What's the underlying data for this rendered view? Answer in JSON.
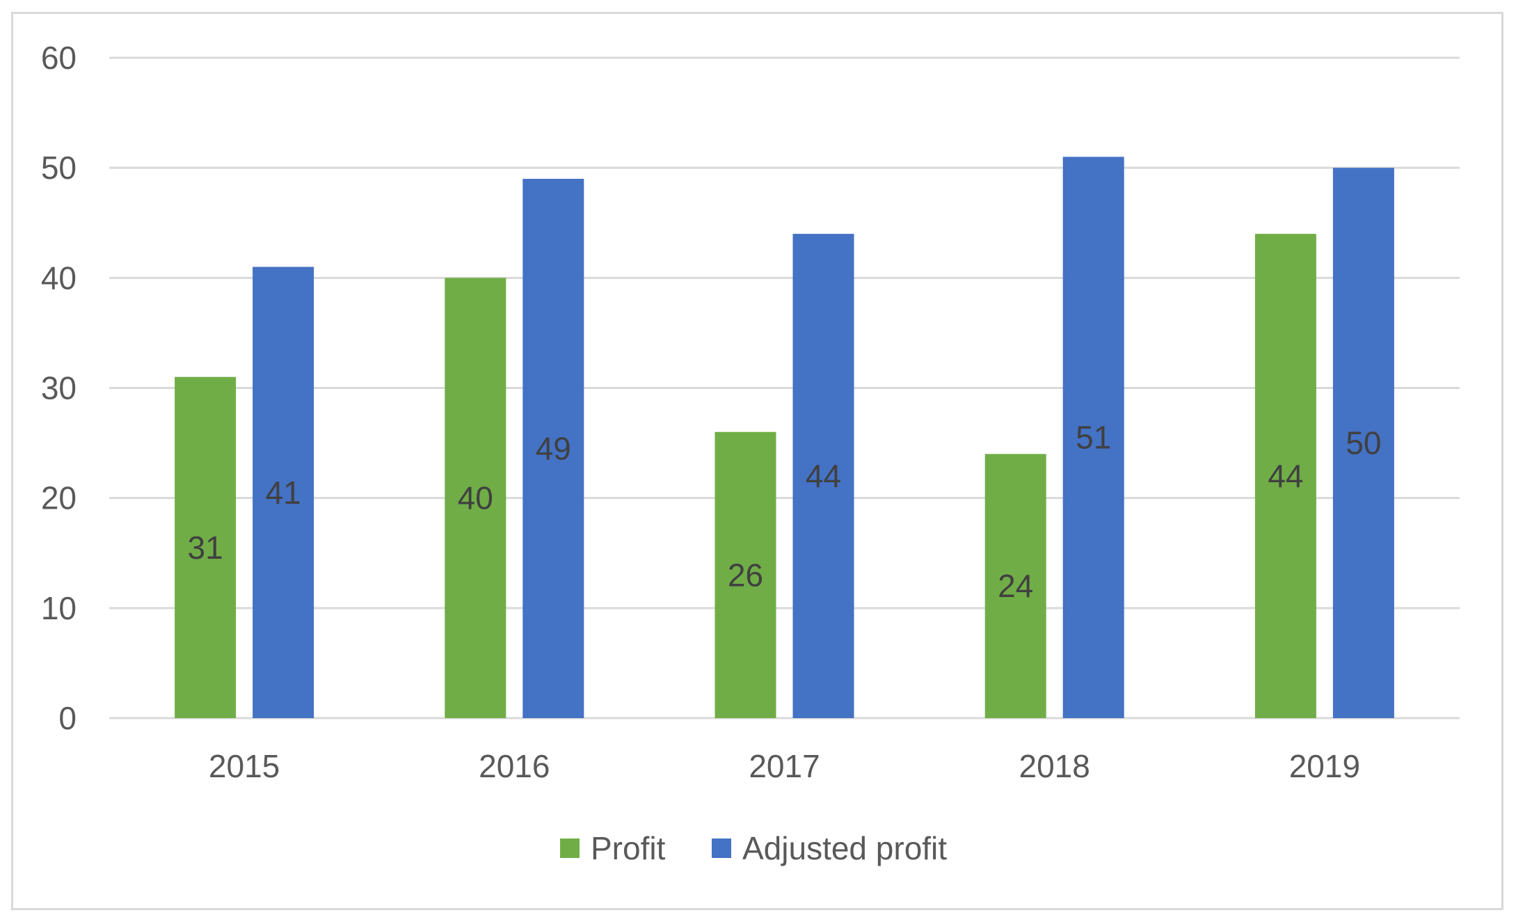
{
  "chart_data": {
    "type": "bar",
    "title": "",
    "xlabel": "",
    "ylabel": "",
    "categories": [
      "2015",
      "2016",
      "2017",
      "2018",
      "2019"
    ],
    "series": [
      {
        "name": "Profit",
        "color": "#70AD47",
        "values": [
          31,
          40,
          26,
          24,
          44
        ]
      },
      {
        "name": "Adjusted profit",
        "color": "#4472C4",
        "values": [
          41,
          49,
          44,
          51,
          50
        ]
      }
    ],
    "ylim": [
      0,
      60
    ],
    "yticks": [
      0,
      10,
      20,
      30,
      40,
      50,
      60
    ],
    "grid": true,
    "gridline_color": "#d9d9d9",
    "data_labels": true,
    "legend_position": "bottom-center"
  }
}
